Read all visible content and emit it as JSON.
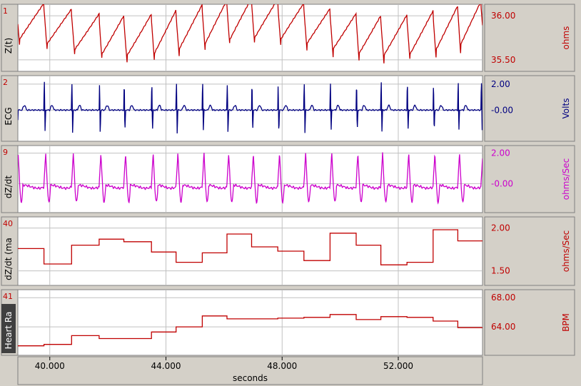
{
  "colors": {
    "background": "#d4d0c8",
    "plot_bg": "#ffffff",
    "grid": "#c0c0c0",
    "red": "#c00000",
    "blue": "#000080",
    "magenta": "#cc00cc",
    "tab_bg": "#d4d0c8",
    "tab_dark": "#404040"
  },
  "x_axis": {
    "label": "seconds",
    "ticks": [
      "40.000",
      "44.000",
      "48.000",
      "52.000"
    ],
    "tick_values": [
      40,
      44,
      48,
      52
    ],
    "range": [
      38.9,
      54.9
    ]
  },
  "channels": [
    {
      "number": "1",
      "name": "Z(t)",
      "unit": "ohms",
      "tick_labels": [
        "36.00",
        "35.50"
      ],
      "tick_values": [
        36.0,
        35.5
      ],
      "color_key": "red"
    },
    {
      "number": "2",
      "name": "ECG",
      "unit": "Volts",
      "tick_labels": [
        "2.00",
        "-0.00"
      ],
      "tick_values": [
        2.0,
        0.0
      ],
      "color_key": "blue"
    },
    {
      "number": "9",
      "name": "dZ/dt",
      "unit": "ohms/Sec",
      "tick_labels": [
        "2.00",
        "-0.00"
      ],
      "tick_values": [
        2.0,
        0.0
      ],
      "color_key": "magenta"
    },
    {
      "number": "40",
      "name": "dZ/dt (ma",
      "unit": "ohms/Sec",
      "tick_labels": [
        "2.00",
        "1.50"
      ],
      "tick_values": [
        2.0,
        1.5
      ],
      "color_key": "red"
    },
    {
      "number": "41",
      "name": "Heart Ra",
      "unit": "BPM",
      "tick_labels": [
        "68.00",
        "64.00"
      ],
      "tick_values": [
        68.0,
        64.0
      ],
      "color_key": "red",
      "dark_tab": true
    }
  ],
  "chart_data": [
    {
      "type": "line",
      "channel": "Z(t)",
      "unit": "ohms",
      "beat_times_s": [
        39.8,
        40.75,
        41.7,
        42.55,
        43.5,
        44.35,
        45.25,
        46.1,
        46.95,
        47.85,
        48.75,
        49.65,
        50.55,
        51.4,
        52.3,
        53.2,
        54.05,
        54.85
      ],
      "ylim": [
        35.37,
        36.13
      ]
    },
    {
      "type": "line",
      "channel": "ECG",
      "unit": "Volts",
      "r_peak_times_s": [
        39.8,
        40.75,
        41.7,
        42.55,
        43.5,
        44.35,
        45.25,
        46.1,
        46.95,
        47.85,
        48.75,
        49.65,
        50.55,
        51.4,
        52.3,
        53.2,
        54.05,
        54.85
      ],
      "ylim": [
        -2.4,
        2.65
      ]
    },
    {
      "type": "line",
      "channel": "dZ/dt",
      "unit": "ohms/Sec",
      "peak_times_s": [
        39.8,
        40.75,
        41.7,
        42.55,
        43.5,
        44.35,
        45.25,
        46.1,
        46.95,
        47.85,
        48.75,
        49.65,
        50.55,
        51.4,
        52.3,
        53.2,
        54.05,
        54.85
      ],
      "ylim": [
        -1.9,
        2.5
      ]
    },
    {
      "type": "line",
      "step": true,
      "channel": "dZ/dt (max)",
      "unit": "ohms/Sec",
      "x": [
        38.9,
        39.8,
        40.75,
        41.7,
        42.55,
        43.5,
        44.35,
        45.25,
        46.1,
        46.95,
        47.85,
        48.75,
        49.65,
        50.55,
        51.4,
        52.3,
        53.2,
        54.05,
        54.9
      ],
      "y": [
        1.76,
        1.58,
        1.8,
        1.87,
        1.84,
        1.72,
        1.6,
        1.71,
        1.93,
        1.78,
        1.73,
        1.62,
        1.94,
        1.8,
        1.57,
        1.6,
        1.98,
        1.85,
        1.6
      ],
      "ylim": [
        1.33,
        2.13
      ]
    },
    {
      "type": "line",
      "step": true,
      "channel": "Heart Rate",
      "unit": "BPM",
      "x": [
        38.9,
        39.8,
        40.75,
        41.7,
        42.55,
        43.5,
        44.35,
        45.25,
        46.1,
        46.95,
        47.85,
        48.75,
        49.65,
        50.55,
        51.4,
        52.3,
        53.2,
        54.05,
        54.9
      ],
      "y": [
        61.4,
        61.6,
        62.8,
        62.4,
        62.4,
        63.3,
        64.0,
        65.5,
        65.1,
        65.1,
        65.2,
        65.3,
        65.7,
        65.0,
        65.4,
        65.3,
        64.8,
        63.9,
        63.8
      ],
      "ylim": [
        60.1,
        69.1
      ]
    }
  ]
}
